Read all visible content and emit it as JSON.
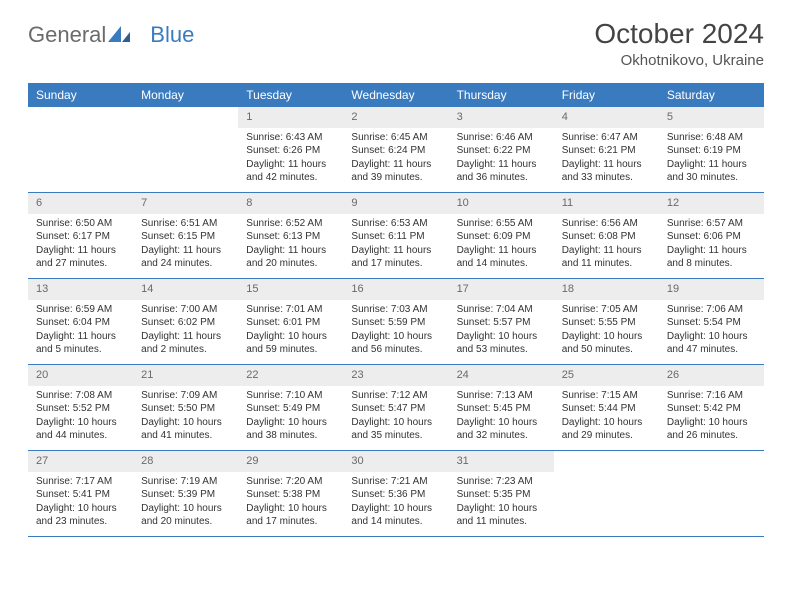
{
  "logo": {
    "text1": "General",
    "text2": "Blue"
  },
  "title": "October 2024",
  "subtitle": "Okhotnikovo, Ukraine",
  "colors": {
    "header_bg": "#3a7bbf",
    "header_text": "#ffffff",
    "daynum_bg": "#ededed",
    "daynum_text": "#6a6a6a",
    "body_text": "#333333",
    "rule": "#3a7bbf",
    "logo_gray": "#6b6b6b",
    "logo_blue": "#3a7bbf"
  },
  "weekdays": [
    "Sunday",
    "Monday",
    "Tuesday",
    "Wednesday",
    "Thursday",
    "Friday",
    "Saturday"
  ],
  "weeks": [
    [
      null,
      null,
      {
        "n": "1",
        "sr": "Sunrise: 6:43 AM",
        "ss": "Sunset: 6:26 PM",
        "d1": "Daylight: 11 hours",
        "d2": "and 42 minutes."
      },
      {
        "n": "2",
        "sr": "Sunrise: 6:45 AM",
        "ss": "Sunset: 6:24 PM",
        "d1": "Daylight: 11 hours",
        "d2": "and 39 minutes."
      },
      {
        "n": "3",
        "sr": "Sunrise: 6:46 AM",
        "ss": "Sunset: 6:22 PM",
        "d1": "Daylight: 11 hours",
        "d2": "and 36 minutes."
      },
      {
        "n": "4",
        "sr": "Sunrise: 6:47 AM",
        "ss": "Sunset: 6:21 PM",
        "d1": "Daylight: 11 hours",
        "d2": "and 33 minutes."
      },
      {
        "n": "5",
        "sr": "Sunrise: 6:48 AM",
        "ss": "Sunset: 6:19 PM",
        "d1": "Daylight: 11 hours",
        "d2": "and 30 minutes."
      }
    ],
    [
      {
        "n": "6",
        "sr": "Sunrise: 6:50 AM",
        "ss": "Sunset: 6:17 PM",
        "d1": "Daylight: 11 hours",
        "d2": "and 27 minutes."
      },
      {
        "n": "7",
        "sr": "Sunrise: 6:51 AM",
        "ss": "Sunset: 6:15 PM",
        "d1": "Daylight: 11 hours",
        "d2": "and 24 minutes."
      },
      {
        "n": "8",
        "sr": "Sunrise: 6:52 AM",
        "ss": "Sunset: 6:13 PM",
        "d1": "Daylight: 11 hours",
        "d2": "and 20 minutes."
      },
      {
        "n": "9",
        "sr": "Sunrise: 6:53 AM",
        "ss": "Sunset: 6:11 PM",
        "d1": "Daylight: 11 hours",
        "d2": "and 17 minutes."
      },
      {
        "n": "10",
        "sr": "Sunrise: 6:55 AM",
        "ss": "Sunset: 6:09 PM",
        "d1": "Daylight: 11 hours",
        "d2": "and 14 minutes."
      },
      {
        "n": "11",
        "sr": "Sunrise: 6:56 AM",
        "ss": "Sunset: 6:08 PM",
        "d1": "Daylight: 11 hours",
        "d2": "and 11 minutes."
      },
      {
        "n": "12",
        "sr": "Sunrise: 6:57 AM",
        "ss": "Sunset: 6:06 PM",
        "d1": "Daylight: 11 hours",
        "d2": "and 8 minutes."
      }
    ],
    [
      {
        "n": "13",
        "sr": "Sunrise: 6:59 AM",
        "ss": "Sunset: 6:04 PM",
        "d1": "Daylight: 11 hours",
        "d2": "and 5 minutes."
      },
      {
        "n": "14",
        "sr": "Sunrise: 7:00 AM",
        "ss": "Sunset: 6:02 PM",
        "d1": "Daylight: 11 hours",
        "d2": "and 2 minutes."
      },
      {
        "n": "15",
        "sr": "Sunrise: 7:01 AM",
        "ss": "Sunset: 6:01 PM",
        "d1": "Daylight: 10 hours",
        "d2": "and 59 minutes."
      },
      {
        "n": "16",
        "sr": "Sunrise: 7:03 AM",
        "ss": "Sunset: 5:59 PM",
        "d1": "Daylight: 10 hours",
        "d2": "and 56 minutes."
      },
      {
        "n": "17",
        "sr": "Sunrise: 7:04 AM",
        "ss": "Sunset: 5:57 PM",
        "d1": "Daylight: 10 hours",
        "d2": "and 53 minutes."
      },
      {
        "n": "18",
        "sr": "Sunrise: 7:05 AM",
        "ss": "Sunset: 5:55 PM",
        "d1": "Daylight: 10 hours",
        "d2": "and 50 minutes."
      },
      {
        "n": "19",
        "sr": "Sunrise: 7:06 AM",
        "ss": "Sunset: 5:54 PM",
        "d1": "Daylight: 10 hours",
        "d2": "and 47 minutes."
      }
    ],
    [
      {
        "n": "20",
        "sr": "Sunrise: 7:08 AM",
        "ss": "Sunset: 5:52 PM",
        "d1": "Daylight: 10 hours",
        "d2": "and 44 minutes."
      },
      {
        "n": "21",
        "sr": "Sunrise: 7:09 AM",
        "ss": "Sunset: 5:50 PM",
        "d1": "Daylight: 10 hours",
        "d2": "and 41 minutes."
      },
      {
        "n": "22",
        "sr": "Sunrise: 7:10 AM",
        "ss": "Sunset: 5:49 PM",
        "d1": "Daylight: 10 hours",
        "d2": "and 38 minutes."
      },
      {
        "n": "23",
        "sr": "Sunrise: 7:12 AM",
        "ss": "Sunset: 5:47 PM",
        "d1": "Daylight: 10 hours",
        "d2": "and 35 minutes."
      },
      {
        "n": "24",
        "sr": "Sunrise: 7:13 AM",
        "ss": "Sunset: 5:45 PM",
        "d1": "Daylight: 10 hours",
        "d2": "and 32 minutes."
      },
      {
        "n": "25",
        "sr": "Sunrise: 7:15 AM",
        "ss": "Sunset: 5:44 PM",
        "d1": "Daylight: 10 hours",
        "d2": "and 29 minutes."
      },
      {
        "n": "26",
        "sr": "Sunrise: 7:16 AM",
        "ss": "Sunset: 5:42 PM",
        "d1": "Daylight: 10 hours",
        "d2": "and 26 minutes."
      }
    ],
    [
      {
        "n": "27",
        "sr": "Sunrise: 7:17 AM",
        "ss": "Sunset: 5:41 PM",
        "d1": "Daylight: 10 hours",
        "d2": "and 23 minutes."
      },
      {
        "n": "28",
        "sr": "Sunrise: 7:19 AM",
        "ss": "Sunset: 5:39 PM",
        "d1": "Daylight: 10 hours",
        "d2": "and 20 minutes."
      },
      {
        "n": "29",
        "sr": "Sunrise: 7:20 AM",
        "ss": "Sunset: 5:38 PM",
        "d1": "Daylight: 10 hours",
        "d2": "and 17 minutes."
      },
      {
        "n": "30",
        "sr": "Sunrise: 7:21 AM",
        "ss": "Sunset: 5:36 PM",
        "d1": "Daylight: 10 hours",
        "d2": "and 14 minutes."
      },
      {
        "n": "31",
        "sr": "Sunrise: 7:23 AM",
        "ss": "Sunset: 5:35 PM",
        "d1": "Daylight: 10 hours",
        "d2": "and 11 minutes."
      },
      null,
      null
    ]
  ]
}
